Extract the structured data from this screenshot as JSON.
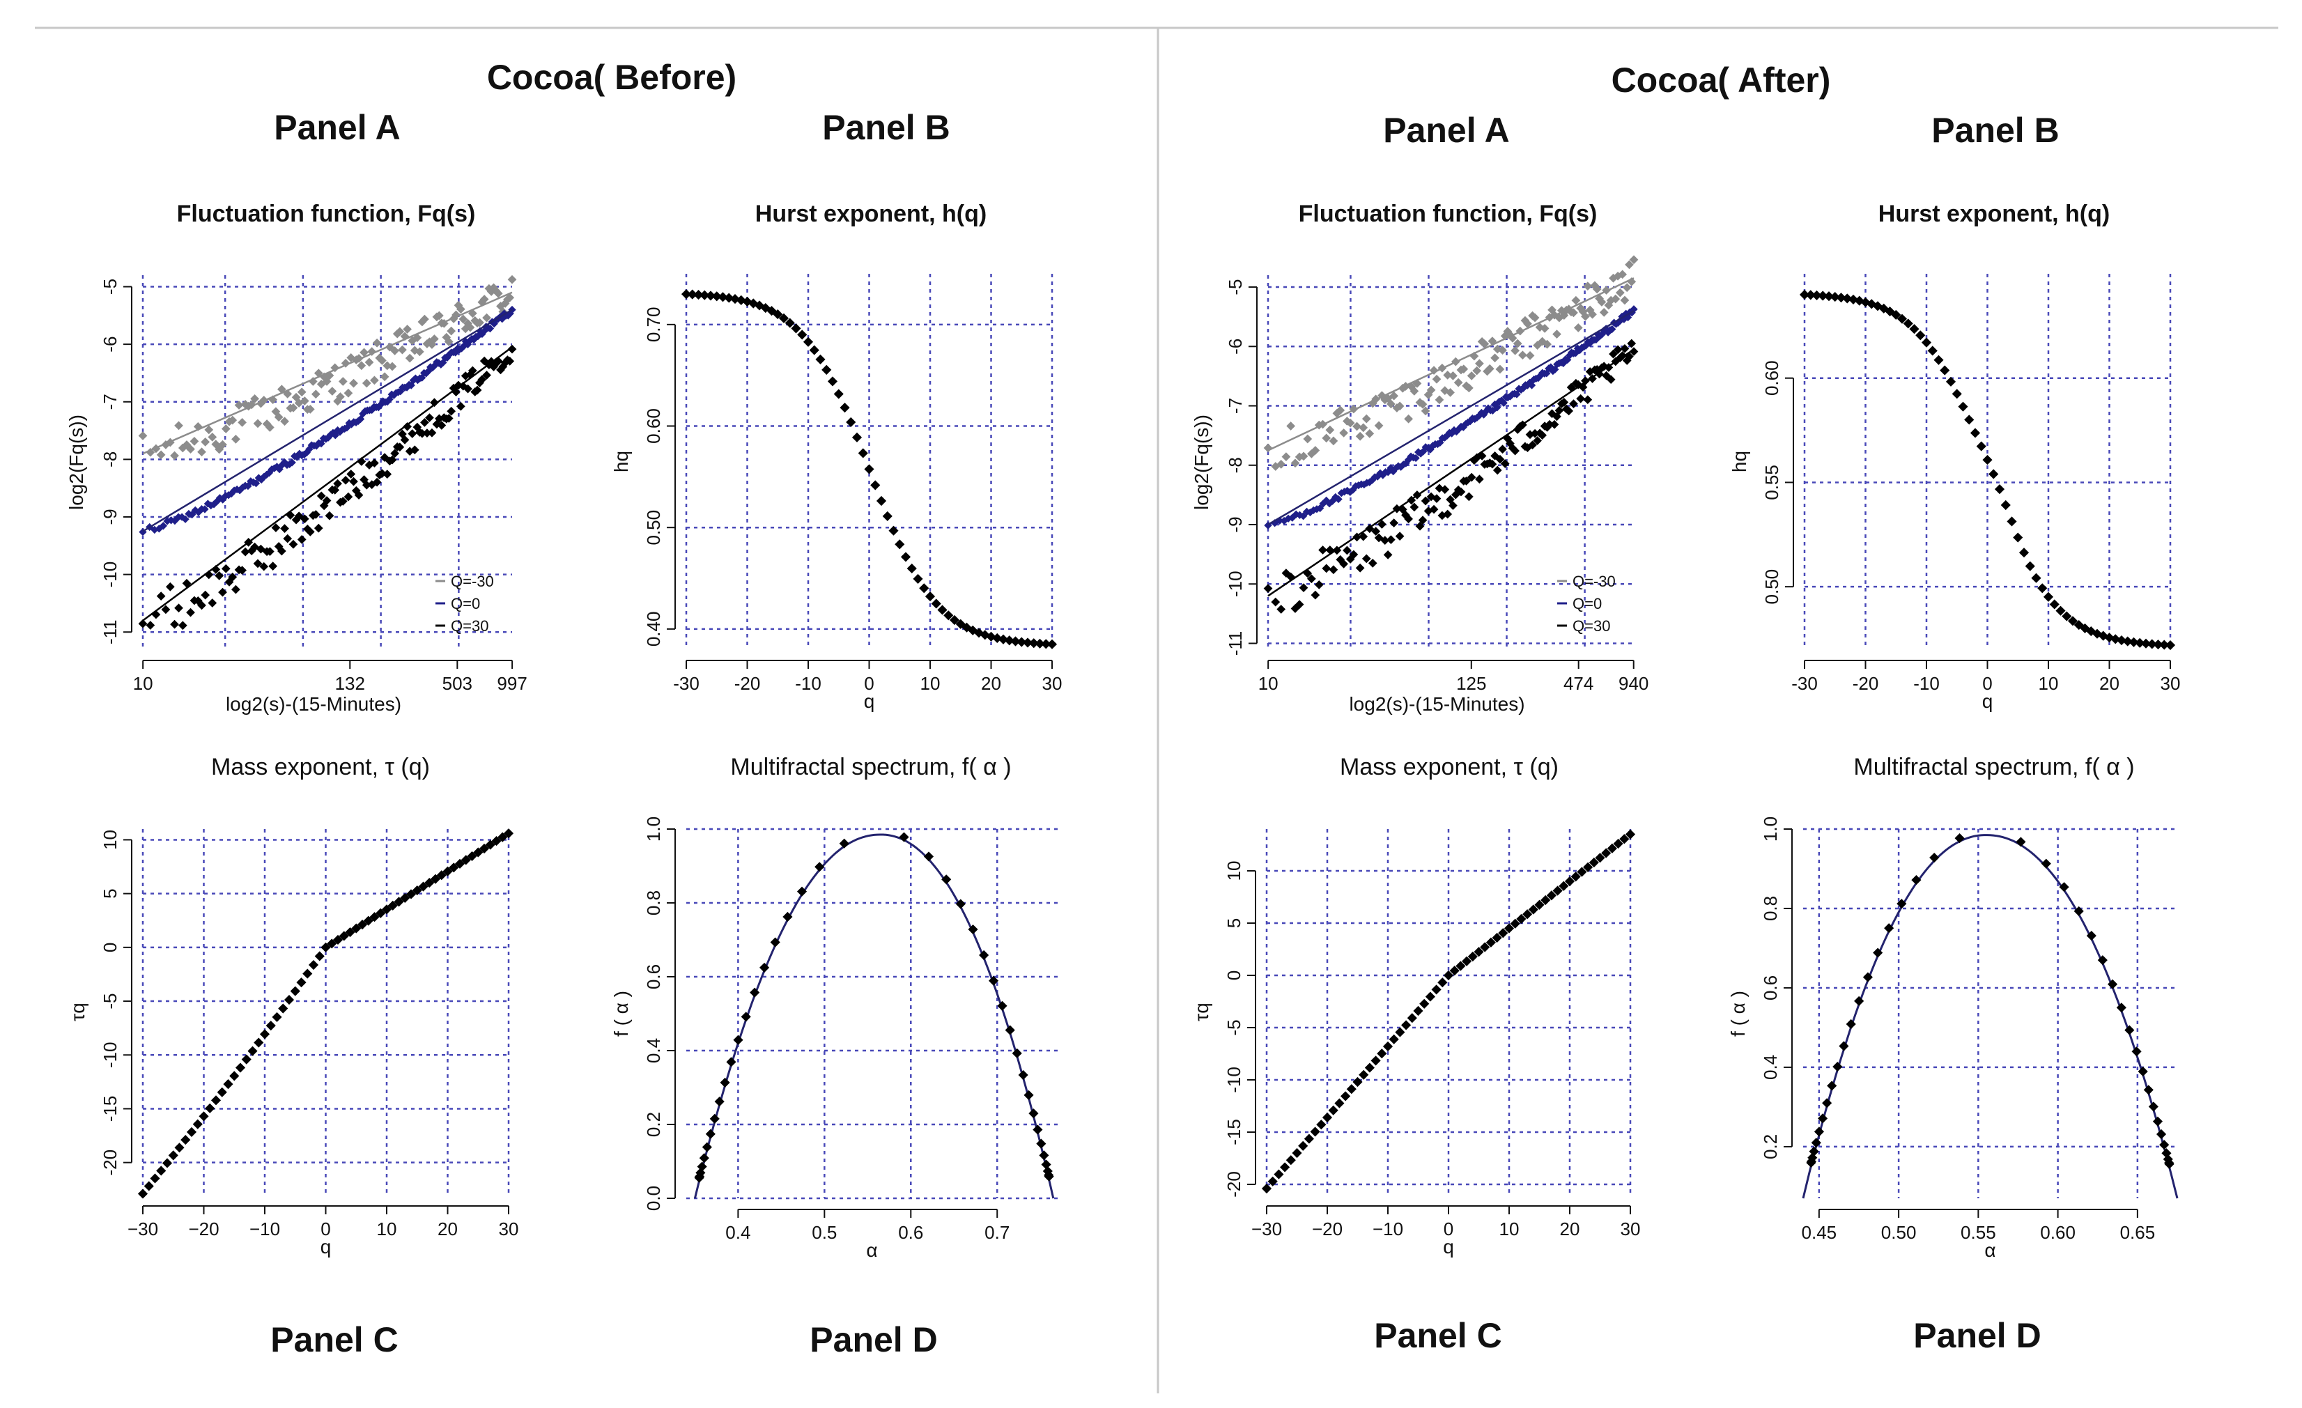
{
  "colors": {
    "gray": "#8c8c8c",
    "blue": "#1f1f8a",
    "black": "#000000",
    "grid": "#4848b8",
    "fit": "#23236e"
  },
  "sections": [
    {
      "title": "Cocoa( Before)",
      "panel_labels": [
        "Panel A",
        "Panel B",
        "Panel C",
        "Panel D"
      ],
      "panels": {
        "A": {
          "title": "Fluctuation function, Fq(s)",
          "ylabel": "log2(Fq(s))",
          "xlabel": "log2(s)-(15-Minutes)",
          "xticks": [
            "10",
            "132",
            "503",
            "997"
          ],
          "yticks": [
            "-5",
            "-6",
            "-7",
            "-8",
            "-9",
            "-10",
            "-11"
          ],
          "legend": [
            "Q=-30",
            "Q=0",
            "Q=30"
          ]
        },
        "B": {
          "title": "Hurst exponent, h(q)",
          "ylabel": "hq",
          "xlabel": "q",
          "xticks": [
            "-30",
            "-20",
            "-10",
            "0",
            "10",
            "20",
            "30"
          ],
          "yticks": [
            "0.70",
            "0.60",
            "0.50",
            "0.40"
          ]
        },
        "C": {
          "title": "Mass exponent,  τ (q)",
          "ylabel": "τq",
          "xlabel": "q",
          "xticks": [
            "−30",
            "−20",
            "−10",
            "0",
            "10",
            "20",
            "30"
          ],
          "yticks": [
            "10",
            "5",
            "0",
            "-5",
            "-10",
            "-15",
            "-20"
          ]
        },
        "D": {
          "title": "Multifractal spectrum, f( α )",
          "ylabel": "f ( α )",
          "xlabel": "α",
          "xticks": [
            "0.4",
            "0.5",
            "0.6",
            "0.7"
          ],
          "yticks": [
            "1.0",
            "0.8",
            "0.6",
            "0.4",
            "0.2",
            "0.0"
          ]
        }
      }
    },
    {
      "title": "Cocoa( After)",
      "panel_labels": [
        "Panel A",
        "Panel B",
        "Panel C",
        "Panel D"
      ],
      "panels": {
        "A": {
          "title": "Fluctuation function, Fq(s)",
          "ylabel": "log2(Fq(s))",
          "xlabel": "log2(s)-(15-Minutes)",
          "xticks": [
            "10",
            "125",
            "474",
            "940"
          ],
          "yticks": [
            "-5",
            "-6",
            "-7",
            "-8",
            "-9",
            "-10",
            "-11"
          ],
          "legend": [
            "Q=-30",
            "Q=0",
            "Q=30"
          ]
        },
        "B": {
          "title": "Hurst exponent, h(q)",
          "ylabel": "hq",
          "xlabel": "q",
          "xticks": [
            "-30",
            "-20",
            "-10",
            "0",
            "10",
            "20",
            "30"
          ],
          "yticks": [
            "0.60",
            "0.55",
            "0.50"
          ]
        },
        "C": {
          "title": "Mass exponent,  τ (q)",
          "ylabel": "τq",
          "xlabel": "q",
          "xticks": [
            "−30",
            "−20",
            "−10",
            "0",
            "10",
            "20",
            "30"
          ],
          "yticks": [
            "10",
            "5",
            "0",
            "-5",
            "-10",
            "-15",
            "-20"
          ]
        },
        "D": {
          "title": "Multifractal spectrum, f( α )",
          "ylabel": "f ( α )",
          "xlabel": "α",
          "xticks": [
            "0.45",
            "0.50",
            "0.55",
            "0.60",
            "0.65"
          ],
          "yticks": [
            "1.0",
            "0.8",
            "0.6",
            "0.4",
            "0.2"
          ]
        }
      }
    }
  ],
  "chart_data": [
    {
      "id": "before-A",
      "type": "scatter",
      "title": "Fluctuation function, Fq(s)",
      "xlabel": "log2(s)-(15-Minutes)",
      "ylabel": "log2(Fq(s))",
      "x_ticks": [
        10,
        132,
        503,
        997
      ],
      "xlim": [
        3.32,
        9.96
      ],
      "ylim": [
        -11.3,
        -4.8
      ],
      "series": [
        {
          "name": "Q=-30",
          "start": -7.9,
          "end": -5.1
        },
        {
          "name": "Q=0",
          "start": -9.25,
          "end": -5.4
        },
        {
          "name": "Q=30",
          "start": -10.8,
          "end": -6.05
        }
      ]
    },
    {
      "id": "before-B",
      "type": "scatter",
      "title": "Hurst exponent, h(q)",
      "xlabel": "q",
      "ylabel": "hq",
      "xlim": [
        -30,
        30
      ],
      "ylim": [
        0.38,
        0.75
      ],
      "h_max": 0.73,
      "h_min": 0.385,
      "h_center": 0.555
    },
    {
      "id": "before-C",
      "type": "scatter",
      "title": "Mass exponent, τ (q)",
      "xlabel": "q",
      "ylabel": "τq",
      "xlim": [
        -30,
        30
      ],
      "ylim": [
        -23,
        11
      ],
      "tau_start": -22.9,
      "tau_end": 10.6
    },
    {
      "id": "before-D",
      "type": "scatter",
      "title": "Multifractal spectrum, f( α )",
      "xlabel": "α",
      "ylabel": "f ( α )",
      "xlim": [
        0.34,
        0.77
      ],
      "ylim": [
        0,
        1.0
      ],
      "alpha_min": 0.35,
      "alpha_max": 0.765,
      "alpha_peak": 0.565,
      "f_peak": 0.985
    },
    {
      "id": "after-A",
      "type": "scatter",
      "title": "Fluctuation function, Fq(s)",
      "xlabel": "log2(s)-(15-Minutes)",
      "ylabel": "log2(Fq(s))",
      "x_ticks": [
        10,
        125,
        474,
        940
      ],
      "xlim": [
        3.32,
        9.88
      ],
      "ylim": [
        -11.1,
        -4.8
      ],
      "series": [
        {
          "name": "Q=-30",
          "start": -7.75,
          "end": -4.85
        },
        {
          "name": "Q=0",
          "start": -9.0,
          "end": -5.4
        },
        {
          "name": "Q=30",
          "start": -10.2,
          "end": -6.05
        }
      ]
    },
    {
      "id": "after-B",
      "type": "scatter",
      "title": "Hurst exponent, h(q)",
      "xlabel": "q",
      "ylabel": "hq",
      "xlim": [
        -30,
        30
      ],
      "ylim": [
        0.47,
        0.65
      ],
      "h_max": 0.64,
      "h_min": 0.472,
      "h_center": 0.553
    },
    {
      "id": "after-C",
      "type": "scatter",
      "title": "Mass exponent, τ (q)",
      "xlabel": "q",
      "ylabel": "τq",
      "xlim": [
        -30,
        30
      ],
      "ylim": [
        -21,
        14
      ],
      "tau_start": -20.4,
      "tau_end": 13.5
    },
    {
      "id": "after-D",
      "type": "scatter",
      "title": "Multifractal spectrum, f( α )",
      "xlabel": "α",
      "ylabel": "f ( α )",
      "xlim": [
        0.44,
        0.675
      ],
      "ylim": [
        0.07,
        1.0
      ],
      "alpha_min": 0.44,
      "alpha_max": 0.675,
      "alpha_peak": 0.555,
      "f_peak": 0.985
    }
  ]
}
